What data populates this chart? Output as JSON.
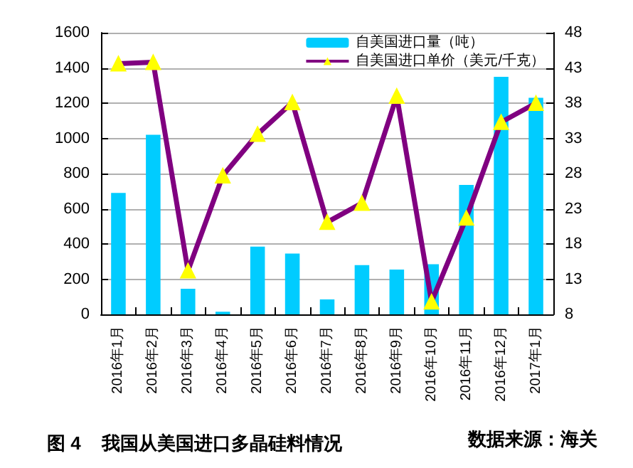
{
  "chart_data": {
    "type": "bar",
    "title": "图 4    我国从美国进口多晶硅料情况",
    "annotations": [
      "数据来源：海关"
    ],
    "categories": [
      "2016年1月",
      "2016年2月",
      "2016年3月",
      "2016年4月",
      "2016年5月",
      "2016年6月",
      "2016年7月",
      "2016年8月",
      "2016年9月",
      "2016年10月",
      "2016年11月",
      "2016年12月",
      "2017年1月"
    ],
    "series": [
      {
        "name": "自美国进口量（吨）",
        "color": "#00ccff",
        "values": [
          690,
          1020,
          145,
          15,
          385,
          345,
          85,
          280,
          255,
          285,
          735,
          1350,
          1230
        ]
      },
      {
        "name": "自美国进口单价（美元/千克）",
        "type": "line",
        "axis": "y2",
        "color": "#800080",
        "marker": "triangle",
        "values": [
          43.6,
          43.8,
          14.2,
          27.7,
          33.6,
          38.1,
          21.1,
          23.8,
          39.0,
          9.8,
          21.7,
          35.3,
          38.0
        ]
      }
    ],
    "ylim": [
      0,
      1600
    ],
    "yticks": [
      0,
      200,
      400,
      600,
      800,
      1000,
      1200,
      1400,
      1600
    ],
    "y2lim": [
      8,
      48
    ],
    "y2ticks": [
      8,
      13,
      18,
      23,
      28,
      33,
      38,
      43,
      48
    ],
    "grid": "y",
    "legend": "top right"
  }
}
